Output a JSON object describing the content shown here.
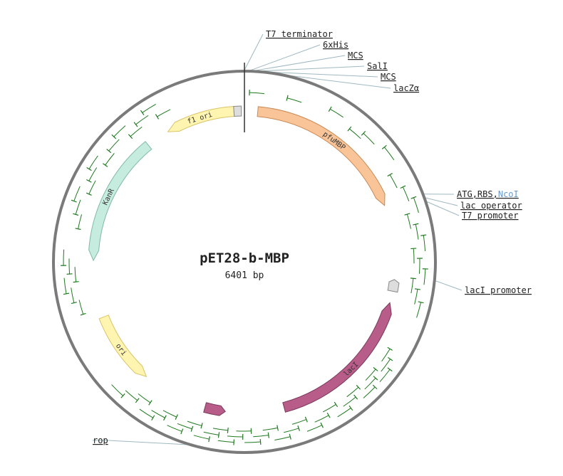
{
  "plasmid": {
    "name": "pET28-b-MBP",
    "size_label": "6401 bp",
    "length": 6401
  },
  "colors": {
    "backbone": "#7a7a7a",
    "cut_lines": "#1f7a1f",
    "leader": "#9fb8c0",
    "ori_fill": "#fff4b0",
    "kan_fill": "#c6ece0",
    "mbp_fill": "#f8c498",
    "laci_fill": "#b85c8a",
    "sali_text": "#7fd23c",
    "ncoi_text": "#6699cc"
  },
  "features": [
    {
      "id": "f1-ori",
      "label": "f1 ori",
      "start": 5860,
      "end": 6330,
      "strand": -1,
      "ring": "inner",
      "fill": "#fff4b0",
      "stroke": "#d8c46a"
    },
    {
      "id": "kanr",
      "label": "KanR",
      "start": 4810,
      "end": 5700,
      "strand": -1,
      "ring": "inner",
      "fill": "#c6ece0",
      "stroke": "#7fb9a6"
    },
    {
      "id": "ori",
      "label": "ori",
      "start": 3920,
      "end": 4420,
      "strand": -1,
      "ring": "inner",
      "fill": "#fff4b0",
      "stroke": "#d8c46a"
    },
    {
      "id": "rop",
      "label": "",
      "start": 3330,
      "end": 3470,
      "strand": -1,
      "ring": "inner",
      "fill": "#b85c8a",
      "stroke": "#7a3a5a"
    },
    {
      "id": "laci",
      "label": "lacI",
      "start": 1880,
      "end": 2930,
      "strand": -1,
      "ring": "inner",
      "fill": "#b85c8a",
      "stroke": "#7a3a5a"
    },
    {
      "id": "laci-promoter",
      "label": "",
      "start": 1720,
      "end": 1800,
      "strand": -1,
      "ring": "inner",
      "fill": "#dddddd",
      "stroke": "#888888"
    },
    {
      "id": "pfumbp",
      "label": "pfuMBP",
      "start": 90,
      "end": 1210,
      "strand": 1,
      "ring": "inner",
      "fill": "#f8c498",
      "stroke": "#c98a55"
    },
    {
      "id": "t7-term",
      "label": "",
      "start": 6330,
      "end": 6380,
      "strand": 0,
      "ring": "inner",
      "fill": "#dddddd",
      "stroke": "#888888"
    }
  ],
  "labels": [
    {
      "id": "t7-terminator",
      "text": "T7 terminator",
      "anchor_pos": 6398
    },
    {
      "id": "6xhis",
      "text": "6xHis",
      "anchor_pos": 20
    },
    {
      "id": "mcs-1",
      "text": "MCS",
      "anchor_pos": 35
    },
    {
      "id": "sali",
      "text": "SalI",
      "anchor_pos": 48
    },
    {
      "id": "mcs-2",
      "text": "MCS",
      "anchor_pos": 60
    },
    {
      "id": "lacz",
      "text": "lacZα",
      "anchor_pos": 75
    },
    {
      "id": "atg-rbs-ncoi",
      "parts": [
        "ATG",
        ",",
        "RBS",
        ",",
        "NcoI"
      ],
      "anchor_pos": 1230
    },
    {
      "id": "lac-operator",
      "text": "lac operator",
      "anchor_pos": 1250
    },
    {
      "id": "t7-promoter",
      "text": "T7 promoter",
      "anchor_pos": 1270
    },
    {
      "id": "laci-promoter-label",
      "text": "lacI promoter",
      "anchor_pos": 1700
    },
    {
      "id": "rop-label",
      "text": "rop",
      "anchor_pos": 3490
    }
  ],
  "cut_sites": [
    {
      "pos": 30,
      "ring": 0
    },
    {
      "pos": 260,
      "ring": 0
    },
    {
      "pos": 520,
      "ring": 1
    },
    {
      "pos": 680,
      "ring": 0
    },
    {
      "pos": 760,
      "ring": 1
    },
    {
      "pos": 900,
      "ring": 2
    },
    {
      "pos": 1050,
      "ring": 0
    },
    {
      "pos": 1150,
      "ring": 1
    },
    {
      "pos": 1230,
      "ring": 2
    },
    {
      "pos": 1310,
      "ring": 0
    },
    {
      "pos": 1380,
      "ring": 1
    },
    {
      "pos": 1450,
      "ring": 2
    },
    {
      "pos": 1520,
      "ring": 0
    },
    {
      "pos": 1580,
      "ring": 1
    },
    {
      "pos": 1640,
      "ring": 2
    },
    {
      "pos": 1700,
      "ring": 0
    },
    {
      "pos": 1760,
      "ring": 1
    },
    {
      "pos": 1830,
      "ring": 2
    },
    {
      "pos": 2150,
      "ring": 0
    },
    {
      "pos": 2200,
      "ring": 1
    },
    {
      "pos": 2250,
      "ring": 2
    },
    {
      "pos": 2300,
      "ring": 0
    },
    {
      "pos": 2340,
      "ring": 1
    },
    {
      "pos": 2380,
      "ring": 2
    },
    {
      "pos": 2450,
      "ring": 0
    },
    {
      "pos": 2500,
      "ring": 1
    },
    {
      "pos": 2560,
      "ring": 2
    },
    {
      "pos": 2620,
      "ring": 0
    },
    {
      "pos": 2690,
      "ring": 1
    },
    {
      "pos": 2750,
      "ring": 2
    },
    {
      "pos": 2820,
      "ring": 0
    },
    {
      "pos": 2880,
      "ring": 1
    },
    {
      "pos": 2940,
      "ring": 2
    },
    {
      "pos": 3000,
      "ring": 0
    },
    {
      "pos": 3060,
      "ring": 1
    },
    {
      "pos": 3110,
      "ring": 2
    },
    {
      "pos": 3160,
      "ring": 0
    },
    {
      "pos": 3210,
      "ring": 1
    },
    {
      "pos": 3260,
      "ring": 2
    },
    {
      "pos": 3300,
      "ring": 0
    },
    {
      "pos": 3350,
      "ring": 1
    },
    {
      "pos": 3400,
      "ring": 2
    },
    {
      "pos": 3460,
      "ring": 0
    },
    {
      "pos": 3510,
      "ring": 1
    },
    {
      "pos": 3560,
      "ring": 2
    },
    {
      "pos": 3620,
      "ring": 0
    },
    {
      "pos": 3680,
      "ring": 1
    },
    {
      "pos": 3740,
      "ring": 2
    },
    {
      "pos": 3800,
      "ring": 0
    },
    {
      "pos": 3870,
      "ring": 1
    },
    {
      "pos": 3950,
      "ring": 2
    },
    {
      "pos": 4480,
      "ring": 0
    },
    {
      "pos": 4560,
      "ring": 1
    },
    {
      "pos": 4620,
      "ring": 2
    },
    {
      "pos": 4680,
      "ring": 0
    },
    {
      "pos": 4730,
      "ring": 1
    },
    {
      "pos": 4780,
      "ring": 2
    },
    {
      "pos": 5000,
      "ring": 0
    },
    {
      "pos": 5080,
      "ring": 1
    },
    {
      "pos": 5150,
      "ring": 2
    },
    {
      "pos": 5220,
      "ring": 0
    },
    {
      "pos": 5290,
      "ring": 1
    },
    {
      "pos": 5350,
      "ring": 2
    },
    {
      "pos": 5420,
      "ring": 0
    },
    {
      "pos": 5500,
      "ring": 1
    },
    {
      "pos": 5580,
      "ring": 2
    },
    {
      "pos": 5650,
      "ring": 0
    },
    {
      "pos": 5720,
      "ring": 1
    },
    {
      "pos": 5790,
      "ring": 2
    },
    {
      "pos": 5850,
      "ring": 0
    }
  ]
}
